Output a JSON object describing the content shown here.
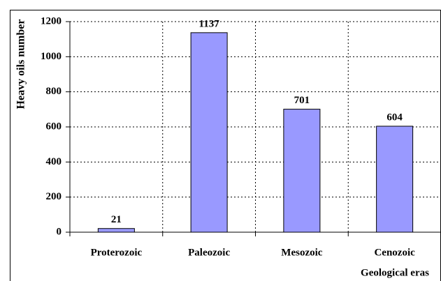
{
  "chart_data": {
    "type": "bar",
    "x_label": "Geological eras",
    "y_label": "Heavy oils number",
    "categories": [
      "Proterozoic",
      "Paleozoic",
      "Mesozoic",
      "Cenozoic"
    ],
    "values": [
      21,
      1137,
      701,
      604
    ],
    "color": "#9999ff",
    "ylim": [
      0,
      1200
    ],
    "yticks": [
      0,
      200,
      400,
      600,
      800,
      1000,
      1200
    ],
    "grid": true
  }
}
